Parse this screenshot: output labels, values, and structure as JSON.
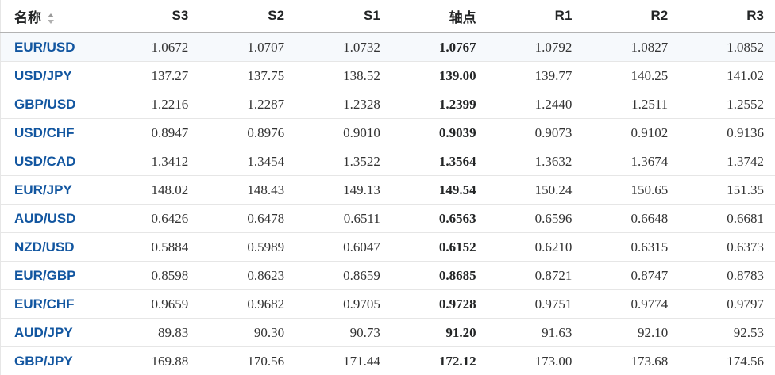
{
  "colors": {
    "link_blue": "#1256a0",
    "highlight_row_bg": "#f6f9fc",
    "header_border": "#b3b3b3",
    "row_border": "#e6e6e6",
    "value_text": "#333333",
    "pivot_text": "#232526"
  },
  "table": {
    "columns": [
      {
        "key": "name",
        "label": "名称",
        "sortable": true
      },
      {
        "key": "s3",
        "label": "S3"
      },
      {
        "key": "s2",
        "label": "S2"
      },
      {
        "key": "s1",
        "label": "S1"
      },
      {
        "key": "pivot",
        "label": "轴点"
      },
      {
        "key": "r1",
        "label": "R1"
      },
      {
        "key": "r2",
        "label": "R2"
      },
      {
        "key": "r3",
        "label": "R3"
      }
    ],
    "highlighted_row": 0,
    "rows": [
      {
        "name": "EUR/USD",
        "s3": "1.0672",
        "s2": "1.0707",
        "s1": "1.0732",
        "pivot": "1.0767",
        "r1": "1.0792",
        "r2": "1.0827",
        "r3": "1.0852"
      },
      {
        "name": "USD/JPY",
        "s3": "137.27",
        "s2": "137.75",
        "s1": "138.52",
        "pivot": "139.00",
        "r1": "139.77",
        "r2": "140.25",
        "r3": "141.02"
      },
      {
        "name": "GBP/USD",
        "s3": "1.2216",
        "s2": "1.2287",
        "s1": "1.2328",
        "pivot": "1.2399",
        "r1": "1.2440",
        "r2": "1.2511",
        "r3": "1.2552"
      },
      {
        "name": "USD/CHF",
        "s3": "0.8947",
        "s2": "0.8976",
        "s1": "0.9010",
        "pivot": "0.9039",
        "r1": "0.9073",
        "r2": "0.9102",
        "r3": "0.9136"
      },
      {
        "name": "USD/CAD",
        "s3": "1.3412",
        "s2": "1.3454",
        "s1": "1.3522",
        "pivot": "1.3564",
        "r1": "1.3632",
        "r2": "1.3674",
        "r3": "1.3742"
      },
      {
        "name": "EUR/JPY",
        "s3": "148.02",
        "s2": "148.43",
        "s1": "149.13",
        "pivot": "149.54",
        "r1": "150.24",
        "r2": "150.65",
        "r3": "151.35"
      },
      {
        "name": "AUD/USD",
        "s3": "0.6426",
        "s2": "0.6478",
        "s1": "0.6511",
        "pivot": "0.6563",
        "r1": "0.6596",
        "r2": "0.6648",
        "r3": "0.6681"
      },
      {
        "name": "NZD/USD",
        "s3": "0.5884",
        "s2": "0.5989",
        "s1": "0.6047",
        "pivot": "0.6152",
        "r1": "0.6210",
        "r2": "0.6315",
        "r3": "0.6373"
      },
      {
        "name": "EUR/GBP",
        "s3": "0.8598",
        "s2": "0.8623",
        "s1": "0.8659",
        "pivot": "0.8685",
        "r1": "0.8721",
        "r2": "0.8747",
        "r3": "0.8783"
      },
      {
        "name": "EUR/CHF",
        "s3": "0.9659",
        "s2": "0.9682",
        "s1": "0.9705",
        "pivot": "0.9728",
        "r1": "0.9751",
        "r2": "0.9774",
        "r3": "0.9797"
      },
      {
        "name": "AUD/JPY",
        "s3": "89.83",
        "s2": "90.30",
        "s1": "90.73",
        "pivot": "91.20",
        "r1": "91.63",
        "r2": "92.10",
        "r3": "92.53"
      },
      {
        "name": "GBP/JPY",
        "s3": "169.88",
        "s2": "170.56",
        "s1": "171.44",
        "pivot": "172.12",
        "r1": "173.00",
        "r2": "173.68",
        "r3": "174.56"
      }
    ]
  }
}
